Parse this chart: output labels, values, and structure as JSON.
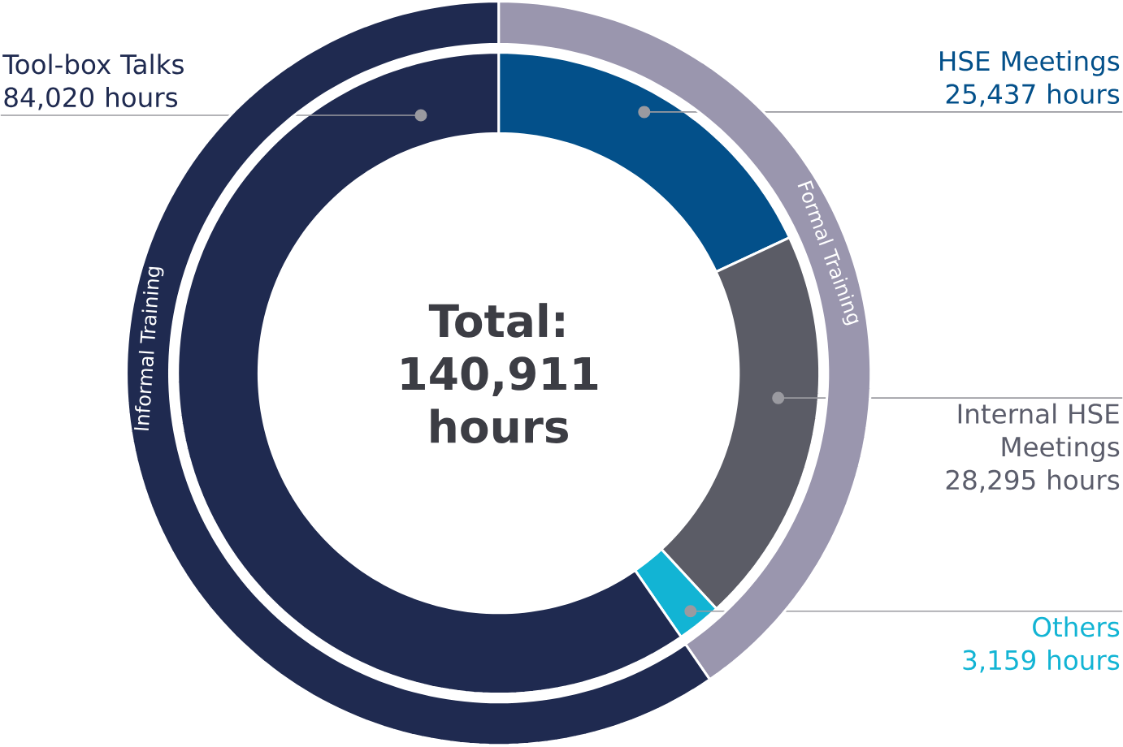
{
  "chart_data": [
    {
      "type": "donut",
      "title": "Total: 140,911 hours",
      "categories": [
        "HSE Meetings",
        "Internal HSE Meetings",
        "Others",
        "Tool-box Talks"
      ],
      "values": [
        25437,
        28295,
        3159,
        84020
      ],
      "colors": [
        "#03508a",
        "#5b5c66",
        "#12b4d4",
        "#1f2a50"
      ],
      "value_labels": [
        "25,437 hours",
        "28,295 hours",
        "3,159 hours",
        "84,020 hours"
      ]
    },
    {
      "type": "donut",
      "categories": [
        "Formal Training",
        "Informal Training"
      ],
      "values": [
        40.4,
        59.6
      ],
      "colors": [
        "#9a96ae",
        "#1f2a50"
      ]
    }
  ]
}
